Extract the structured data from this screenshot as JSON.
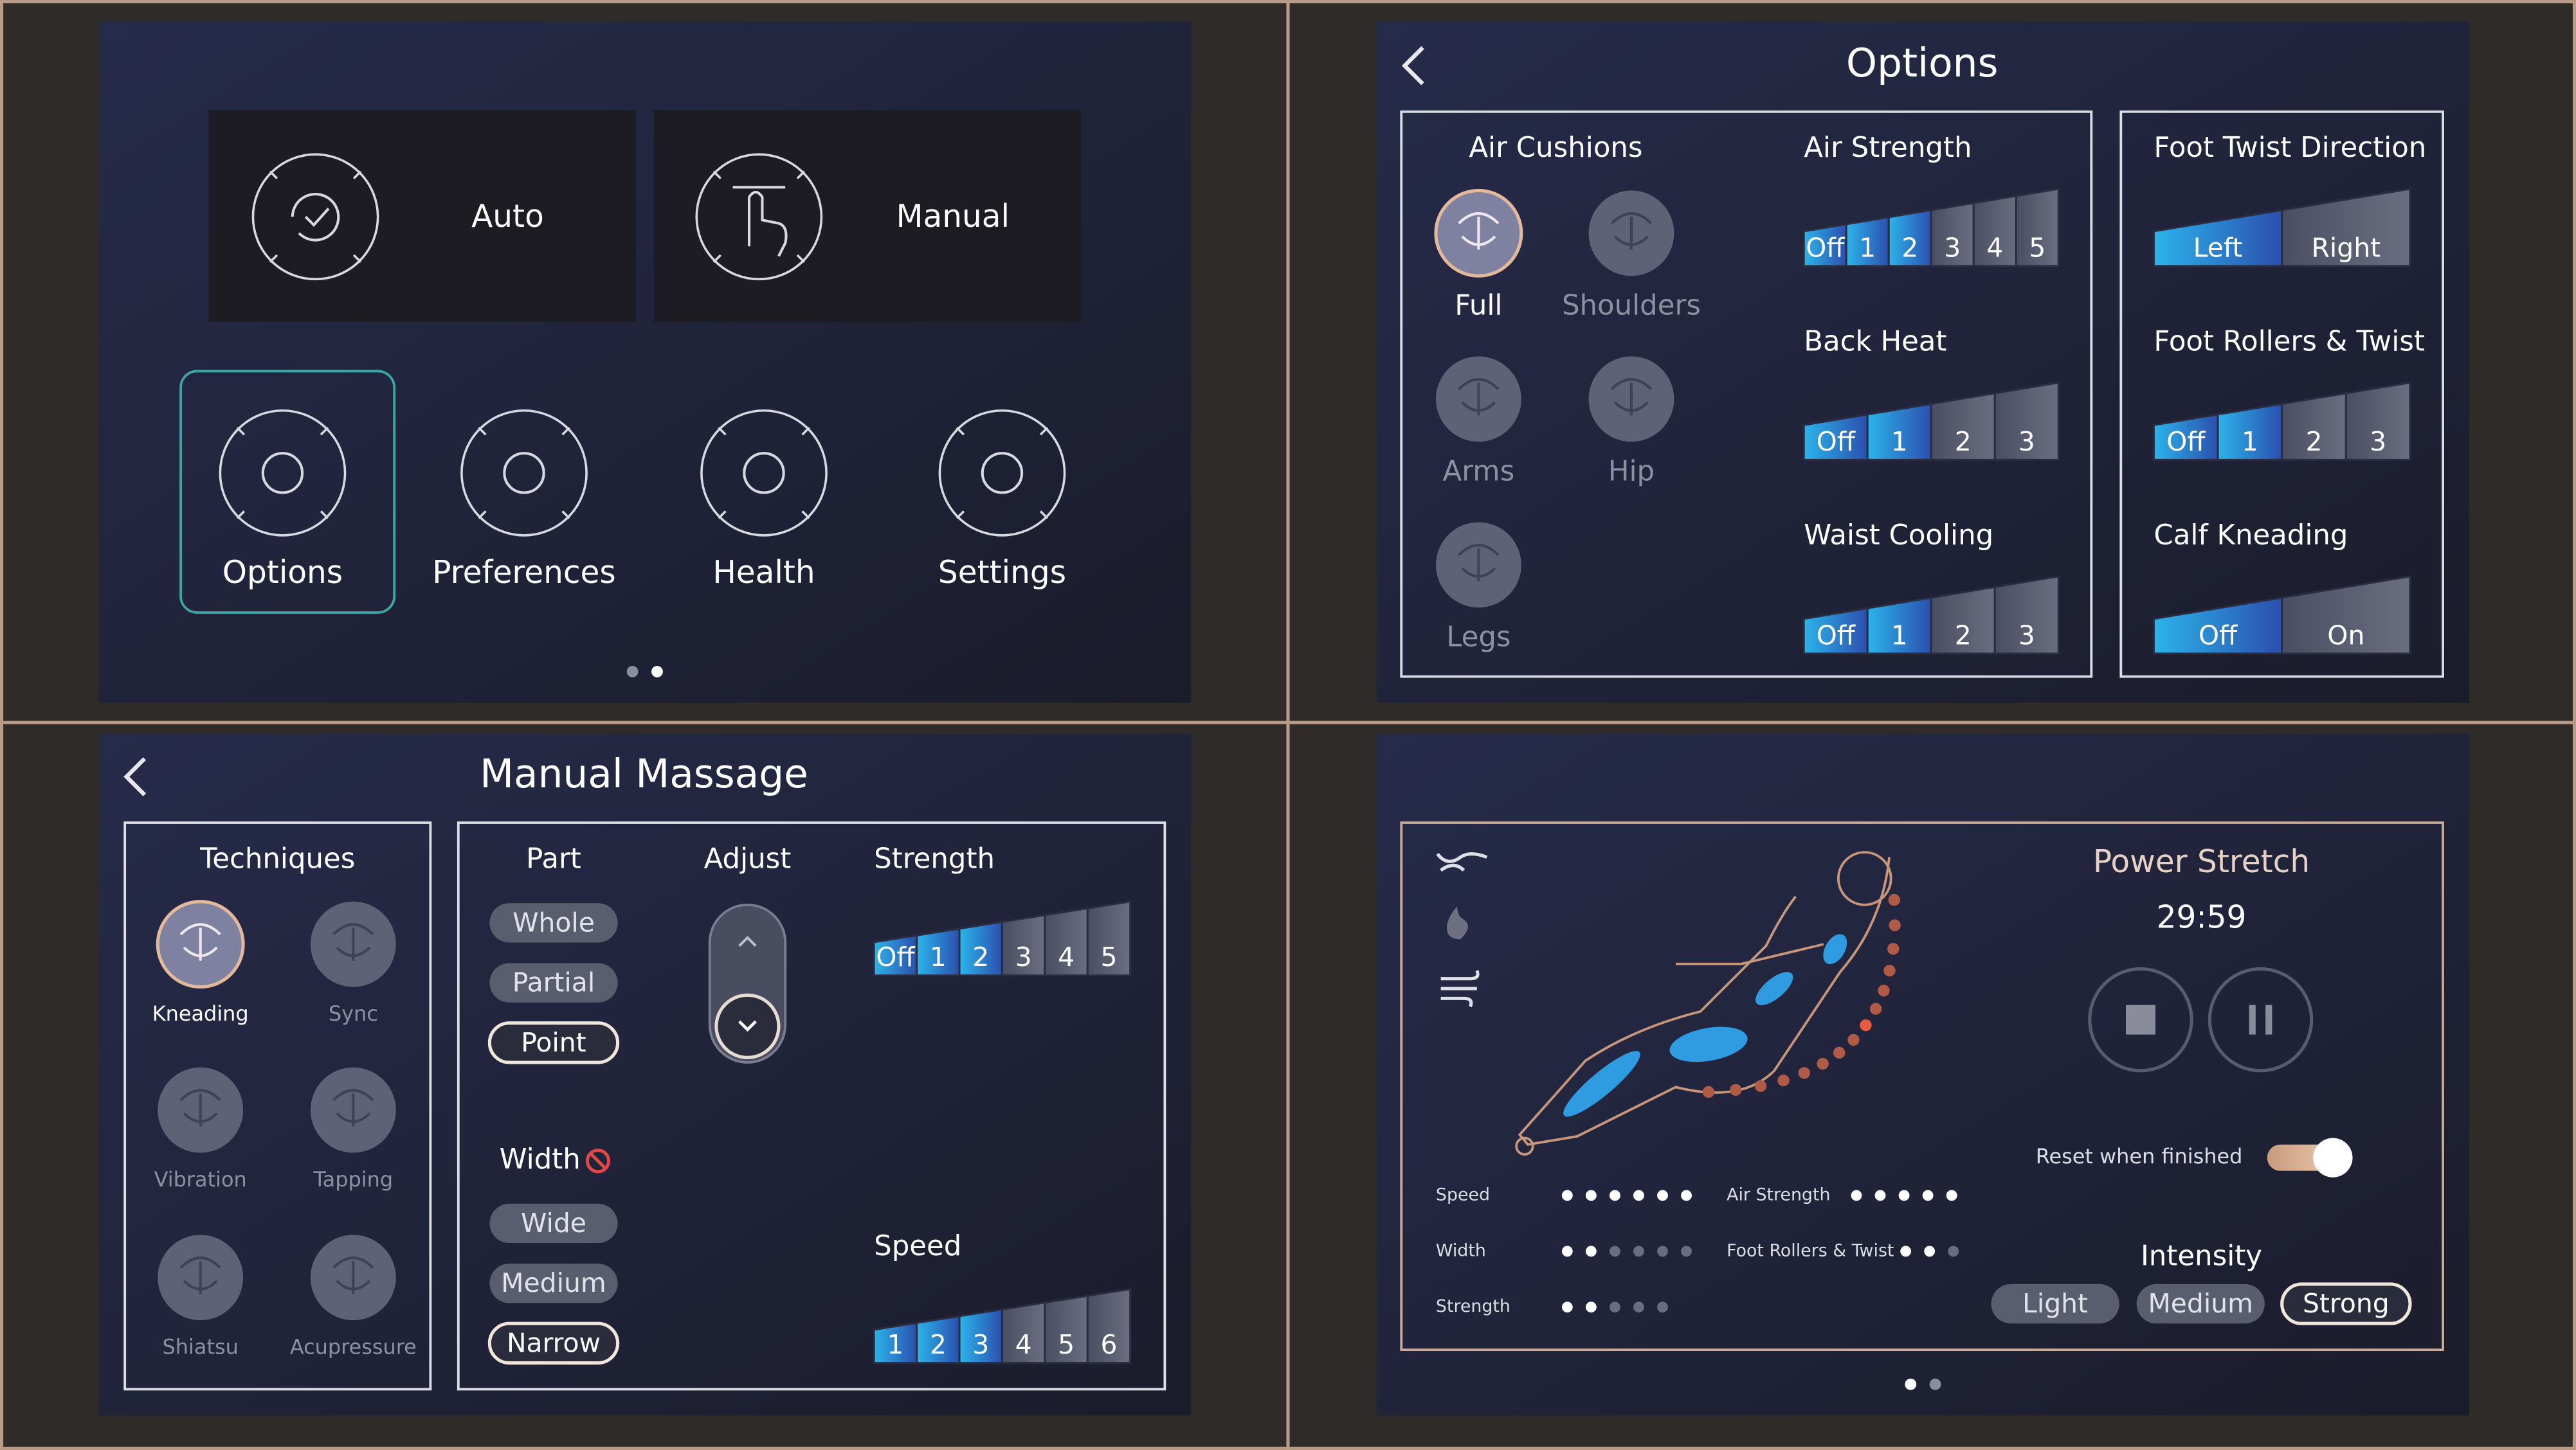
{
  "home": {
    "modes": [
      "Auto",
      "Manual"
    ],
    "menu": [
      "Options",
      "Preferences",
      "Health",
      "Settings"
    ],
    "selected": "Options"
  },
  "options": {
    "title": "Options",
    "air_cushions": {
      "title": "Air Cushions",
      "items": [
        "Full",
        "Shoulders",
        "Arms",
        "Hip",
        "Legs"
      ],
      "selected": "Full"
    },
    "settings": [
      {
        "label": "Air Strength",
        "levels": [
          "Off",
          "1",
          "2",
          "3",
          "4",
          "5"
        ],
        "selected": "2"
      },
      {
        "label": "Back Heat",
        "levels": [
          "Off",
          "1",
          "2",
          "3"
        ],
        "selected": "1"
      },
      {
        "label": "Waist Cooling",
        "levels": [
          "Off",
          "1",
          "2",
          "3"
        ],
        "selected": "1"
      },
      {
        "label": "Foot Twist Direction",
        "levels": [
          "Left",
          "Right"
        ],
        "selected": "Left"
      },
      {
        "label": "Foot Rollers & Twist",
        "levels": [
          "Off",
          "1",
          "2",
          "3"
        ],
        "selected": "1"
      },
      {
        "label": "Calf Kneading",
        "levels": [
          "Off",
          "On"
        ],
        "selected": "Off"
      }
    ]
  },
  "manual": {
    "title": "Manual Massage",
    "techniques": {
      "title": "Techniques",
      "items": [
        "Kneading",
        "Sync",
        "Vibration",
        "Tapping",
        "Shiatsu",
        "Acupressure"
      ],
      "selected": "Kneading"
    },
    "part": {
      "title": "Part",
      "options": [
        "Whole",
        "Partial",
        "Point"
      ],
      "selected": "Point"
    },
    "adjust": {
      "title": "Adjust"
    },
    "strength": {
      "title": "Strength",
      "levels": [
        "Off",
        "1",
        "2",
        "3",
        "4",
        "5"
      ],
      "selected": "2"
    },
    "width": {
      "title": "Width",
      "options": [
        "Wide",
        "Medium",
        "Narrow"
      ],
      "selected": "Narrow"
    },
    "speed": {
      "title": "Speed",
      "levels": [
        "1",
        "2",
        "3",
        "4",
        "5",
        "6"
      ],
      "selected": "3"
    }
  },
  "program": {
    "name": "Power Stretch",
    "time": "29:59",
    "reset_label": "Reset when finished",
    "reset_on": true,
    "intensity": {
      "title": "Intensity",
      "options": [
        "Light",
        "Medium",
        "Strong"
      ],
      "selected": "Strong"
    },
    "status": [
      {
        "label": "Speed",
        "level": 6,
        "max": 6
      },
      {
        "label": "Width",
        "level": 2,
        "max": 6
      },
      {
        "label": "Strength",
        "level": 2,
        "max": 5
      },
      {
        "label": "Air Strength",
        "level": 5,
        "max": 5
      },
      {
        "label": "Foot Rollers & Twist",
        "level": 2,
        "max": 3
      }
    ]
  }
}
